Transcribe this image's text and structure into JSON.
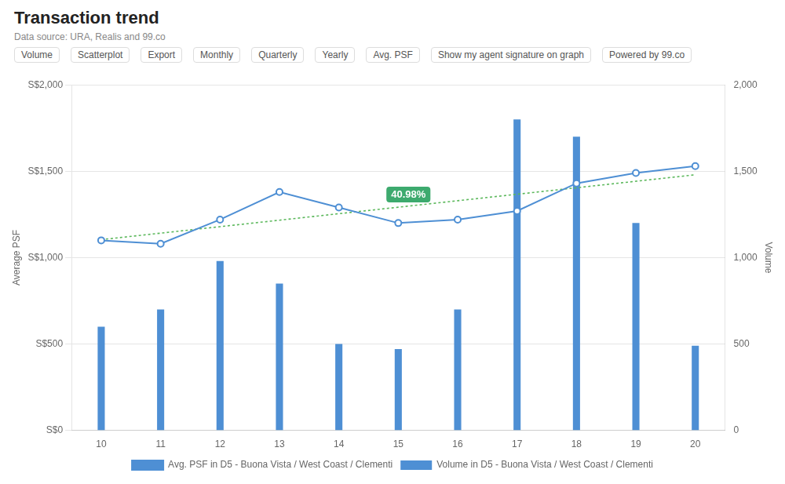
{
  "chart_data": {
    "type": "bar",
    "title": "Transaction trend",
    "subtitle": "Data source: URA, Realis and 99.co",
    "x": [
      10,
      11,
      12,
      13,
      14,
      15,
      16,
      17,
      18,
      19,
      20
    ],
    "xlim": [
      9.5,
      20.5
    ],
    "xticks": [
      10,
      11,
      12,
      13,
      14,
      15,
      16,
      17,
      18,
      19,
      20
    ],
    "ylabel": "Average PSF",
    "y2label": "Volume",
    "ylim": [
      0,
      2000
    ],
    "yticks": [
      {
        "value": 0,
        "label": "S$0"
      },
      {
        "value": 500,
        "label": "S$500"
      },
      {
        "value": 1000,
        "label": "S$1,000"
      },
      {
        "value": 1500,
        "label": "S$1,500"
      },
      {
        "value": 2000,
        "label": "S$2,000"
      }
    ],
    "y2lim": [
      0,
      2000
    ],
    "y2ticks": [
      0,
      500,
      {
        "value": 1000,
        "label": "1,000"
      },
      {
        "value": 1500,
        "label": "1,500"
      },
      {
        "value": 2000,
        "label": "2,000"
      }
    ],
    "grid": true,
    "legend": "bottom",
    "series": [
      {
        "name": "Avg. PSF in D5 - Buona Vista / West Coast / Clementi",
        "type": "line",
        "color": "#4e8fd4",
        "marker": "circle",
        "values": [
          1100,
          1080,
          1220,
          1380,
          1290,
          1200,
          1220,
          1270,
          1430,
          1490,
          1530
        ]
      },
      {
        "name": "Volume in D5 - Buona Vista / West Coast / Clementi",
        "type": "bar",
        "axis": "y2",
        "color": "#4e8fd4",
        "values": [
          600,
          700,
          980,
          850,
          500,
          470,
          700,
          1800,
          1700,
          1200,
          490
        ]
      },
      {
        "type": "line",
        "color": "#5cb85c",
        "line_style": "dotted",
        "marker": "none",
        "values": [
          1104.0909,
          1141.6364,
          1179.1818,
          1216.7273,
          1254.2727,
          1291.8182,
          1329.3636,
          1366.9091,
          1404.4545,
          1442,
          1479.5455
        ]
      }
    ],
    "annotations": [
      {
        "text": "40.98%",
        "x": 14.8,
        "y": 1320,
        "color": "#3daa6e"
      },
      {
        "text": "Volume"
      },
      {
        "text": "Scatterplot"
      },
      {
        "text": "Export"
      },
      {
        "text": "Monthly"
      },
      {
        "text": "Quarterly"
      },
      {
        "text": "Yearly"
      },
      {
        "text": "Avg. PSF"
      },
      {
        "text": "Show my agent signature on graph"
      },
      {
        "text": "Powered by 99.co"
      }
    ]
  }
}
